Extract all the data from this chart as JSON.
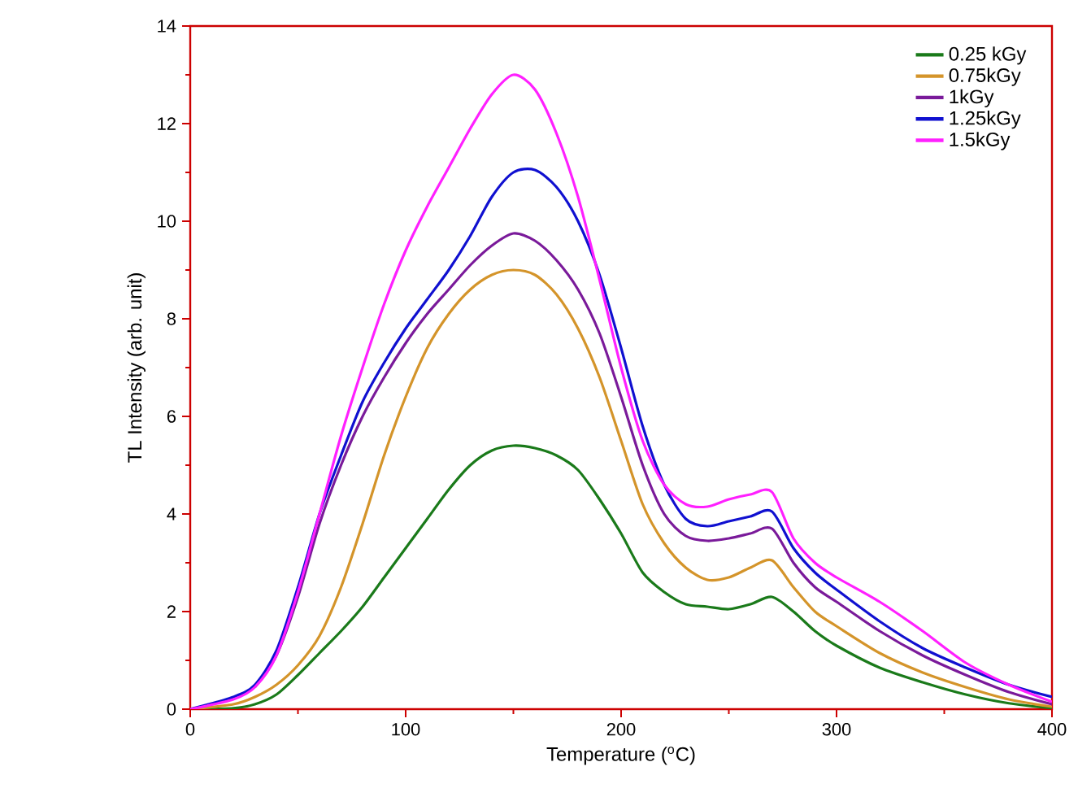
{
  "chart_data": {
    "type": "line",
    "xlabel": "Temperature ($^{o}$C)",
    "ylabel": "TL Intensity (arb. unit)",
    "x": [
      0,
      20,
      30,
      40,
      50,
      60,
      70,
      80,
      90,
      100,
      110,
      120,
      130,
      140,
      150,
      160,
      170,
      180,
      190,
      200,
      210,
      220,
      230,
      240,
      250,
      260,
      270,
      280,
      290,
      300,
      320,
      340,
      360,
      380,
      400
    ],
    "series": [
      {
        "name": "0.25 kGy",
        "color": "#1a7a1a",
        "values": [
          0,
          0.02,
          0.1,
          0.3,
          0.7,
          1.15,
          1.6,
          2.1,
          2.7,
          3.3,
          3.9,
          4.5,
          5.0,
          5.3,
          5.4,
          5.35,
          5.2,
          4.9,
          4.3,
          3.6,
          2.8,
          2.4,
          2.15,
          2.1,
          2.05,
          2.15,
          2.3,
          2.0,
          1.6,
          1.3,
          0.85,
          0.55,
          0.3,
          0.12,
          0.02
        ]
      },
      {
        "name": "0.75kGy",
        "color": "#d4942a",
        "values": [
          0,
          0.1,
          0.25,
          0.5,
          0.9,
          1.5,
          2.5,
          3.8,
          5.2,
          6.4,
          7.4,
          8.1,
          8.6,
          8.9,
          9.0,
          8.9,
          8.5,
          7.8,
          6.8,
          5.5,
          4.2,
          3.4,
          2.9,
          2.65,
          2.7,
          2.9,
          3.05,
          2.5,
          2.0,
          1.7,
          1.15,
          0.75,
          0.45,
          0.2,
          0.05
        ]
      },
      {
        "name": "1kGy",
        "color": "#7a1a9a",
        "values": [
          null,
          null,
          0.45,
          1.1,
          2.3,
          3.8,
          5.0,
          6.0,
          6.8,
          7.5,
          8.1,
          8.6,
          9.1,
          9.5,
          9.75,
          9.6,
          9.2,
          8.6,
          7.7,
          6.4,
          5.0,
          4.0,
          3.55,
          3.45,
          3.5,
          3.6,
          3.7,
          3.0,
          2.5,
          2.2,
          1.6,
          1.1,
          0.7,
          0.35,
          0.1
        ]
      },
      {
        "name": "1.25kGy",
        "color": "#1010d0",
        "values": [
          0,
          0.25,
          0.5,
          1.2,
          2.5,
          4.0,
          5.2,
          6.3,
          7.1,
          7.8,
          8.4,
          9.0,
          9.7,
          10.5,
          11.0,
          11.05,
          10.7,
          10.0,
          8.9,
          7.4,
          5.8,
          4.6,
          3.9,
          3.75,
          3.85,
          3.95,
          4.05,
          3.3,
          2.8,
          2.45,
          1.8,
          1.25,
          0.85,
          0.5,
          0.25
        ]
      },
      {
        "name": "1.5kGy",
        "color": "#ff20ff",
        "values": [
          0,
          0.2,
          0.45,
          1.1,
          2.4,
          4.0,
          5.6,
          7.0,
          8.3,
          9.4,
          10.3,
          11.1,
          11.9,
          12.6,
          13.0,
          12.7,
          11.8,
          10.5,
          8.8,
          7.0,
          5.5,
          4.6,
          4.2,
          4.15,
          4.3,
          4.4,
          4.45,
          3.5,
          3.0,
          2.7,
          2.2,
          1.6,
          0.95,
          0.5,
          0.15
        ]
      }
    ],
    "xlim": [
      0,
      400
    ],
    "xticks": [
      0,
      100,
      200,
      300,
      400
    ],
    "ylim": [
      0,
      14
    ],
    "yticks": [
      0,
      2,
      4,
      6,
      8,
      10,
      12,
      14
    ],
    "grid": false,
    "legend": "top right",
    "marker": "none",
    "line_style": "solid"
  }
}
